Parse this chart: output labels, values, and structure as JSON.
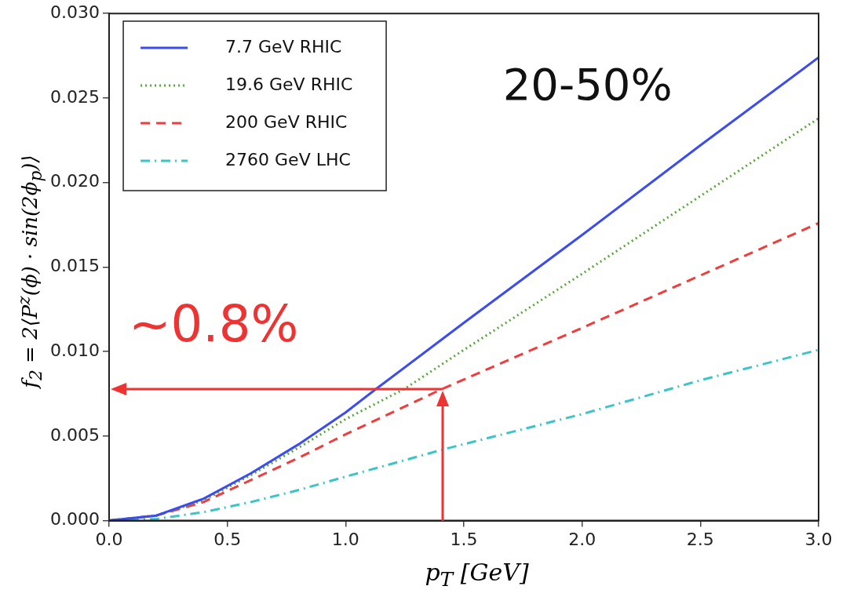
{
  "chart_data": {
    "type": "line",
    "xlabel": "p$_{T}$  [GeV]",
    "ylabel": "f$_{2}$ = 2⟨P$^{z}$(ϕ) · sin(2ϕ$_{p}$)⟩",
    "x": [
      0,
      0.2,
      0.4,
      0.6,
      0.8,
      1.0,
      1.13,
      1.5,
      2.0,
      2.5,
      3.0
    ],
    "series": [
      {
        "name": "7.7 GeV RHIC",
        "color": "#3b4cf0",
        "line_style": "solid",
        "values": [
          0,
          0.0003,
          0.0013,
          0.0028,
          0.0045,
          0.0064,
          0.0078,
          0.0117,
          0.0169,
          0.0222,
          0.0274
        ]
      },
      {
        "name": "19.6 GeV RHIC",
        "color": "#5aa63a",
        "line_style": "dotted",
        "x": [
          0,
          0.2,
          0.4,
          0.6,
          0.8,
          1.0,
          1.25,
          1.5,
          2.0,
          2.5,
          3.0
        ],
        "values": [
          0,
          0.0003,
          0.0012,
          0.0027,
          0.0043,
          0.006,
          0.0078,
          0.0101,
          0.0146,
          0.0192,
          0.0238
        ]
      },
      {
        "name": "200 GeV RHIC",
        "color": "#f03c3c",
        "line_style": "dashed",
        "x": [
          0,
          0.2,
          0.4,
          0.6,
          0.8,
          1.0,
          1.41,
          2.0,
          2.5,
          3.0
        ],
        "values": [
          0,
          0.0003,
          0.0011,
          0.0024,
          0.0037,
          0.0051,
          0.0078,
          0.0114,
          0.0145,
          0.0176
        ]
      },
      {
        "name": "2760 GeV LHC",
        "color": "#3cc4c8",
        "line_style": "dashdot",
        "x": [
          0,
          0.2,
          0.4,
          0.6,
          0.8,
          1.0,
          1.41,
          2.0,
          2.5,
          3.0
        ],
        "values": [
          0,
          0.0001,
          0.0005,
          0.0011,
          0.0018,
          0.0026,
          0.0042,
          0.0063,
          0.0083,
          0.0101
        ]
      }
    ],
    "xlim": [
      0,
      3
    ],
    "xticks": [
      {
        "value": 0,
        "label": "0.0"
      },
      {
        "value": 0.5,
        "label": "0.5"
      },
      {
        "value": 1,
        "label": "1.0"
      },
      {
        "value": 1.5,
        "label": "1.5"
      },
      {
        "value": 2,
        "label": "2.0"
      },
      {
        "value": 2.5,
        "label": "2.5"
      },
      {
        "value": 3,
        "label": "3.0"
      }
    ],
    "ylim": [
      0,
      0.03
    ],
    "yticks": [
      {
        "value": 0,
        "label": "0.000"
      },
      {
        "value": 0.005,
        "label": "0.005"
      },
      {
        "value": 0.01,
        "label": "0.010"
      },
      {
        "value": 0.015,
        "label": "0.015"
      },
      {
        "value": 0.02,
        "label": "0.020"
      },
      {
        "value": 0.025,
        "label": "0.025"
      },
      {
        "value": 0.03,
        "label": "0.030"
      }
    ],
    "grid": false,
    "legend": "top left",
    "marker": "none",
    "annotations": [
      "20-50%",
      {
        "text": "~0.8%",
        "x": 1.41,
        "y": 0.0078
      }
    ]
  }
}
